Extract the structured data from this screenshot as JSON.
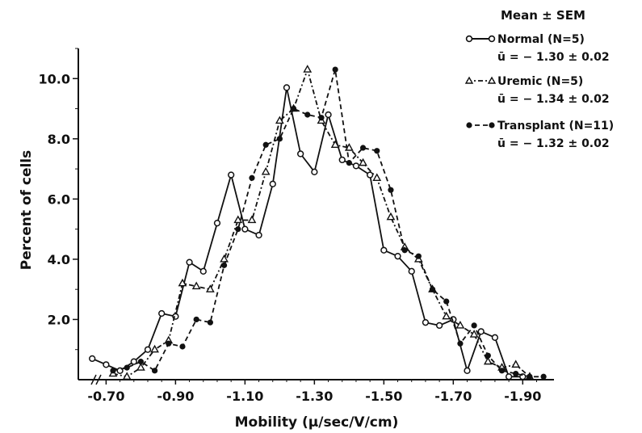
{
  "chart_data": {
    "type": "line",
    "title": "",
    "xlabel": "Mobility (μ/sec/V/cm)",
    "ylabel": "Percent of cells",
    "xlim": [
      -0.62,
      -1.99
    ],
    "ylim": [
      0,
      11
    ],
    "x_ticks": [
      -0.7,
      -0.9,
      -1.1,
      -1.3,
      -1.5,
      -1.7,
      -1.9
    ],
    "x_tick_labels": [
      "-0.70",
      "-0.90",
      "-1.10",
      "-1.30",
      "-1.50",
      "-1.70",
      "-1.90"
    ],
    "y_ticks": [
      2.0,
      4.0,
      6.0,
      8.0,
      10.0
    ],
    "y_tick_labels": [
      "2.0",
      "4.0",
      "6.0",
      "8.0",
      "10.0"
    ],
    "grid": false,
    "legend_title": "Mean ± SEM",
    "legend_position": "top-right",
    "series": [
      {
        "name": "Normal (N=5)",
        "stat": "ū = − 1.30 ± 0.02",
        "marker": "open-circle",
        "line_style": "solid",
        "x": [
          -0.66,
          -0.7,
          -0.74,
          -0.78,
          -0.82,
          -0.86,
          -0.9,
          -0.94,
          -0.98,
          -1.02,
          -1.06,
          -1.1,
          -1.14,
          -1.18,
          -1.22,
          -1.26,
          -1.3,
          -1.34,
          -1.38,
          -1.42,
          -1.46,
          -1.5,
          -1.54,
          -1.58,
          -1.62,
          -1.66,
          -1.7,
          -1.74,
          -1.78,
          -1.82,
          -1.86,
          -1.9
        ],
        "values": [
          0.7,
          0.5,
          0.3,
          0.6,
          1.0,
          2.2,
          2.1,
          3.9,
          3.6,
          5.2,
          6.8,
          5.0,
          4.8,
          6.5,
          9.7,
          7.5,
          6.9,
          8.8,
          7.3,
          7.1,
          6.8,
          4.3,
          4.1,
          3.6,
          1.9,
          1.8,
          2.0,
          0.3,
          1.6,
          1.4,
          0.1,
          0.1
        ]
      },
      {
        "name": "Uremic (N=5)",
        "stat": "ū = − 1.34 ± 0.02",
        "marker": "open-triangle",
        "line_style": "dash-dot",
        "x": [
          -0.72,
          -0.76,
          -0.8,
          -0.84,
          -0.88,
          -0.92,
          -0.96,
          -1.0,
          -1.04,
          -1.08,
          -1.12,
          -1.16,
          -1.2,
          -1.24,
          -1.28,
          -1.32,
          -1.36,
          -1.4,
          -1.44,
          -1.48,
          -1.52,
          -1.56,
          -1.6,
          -1.64,
          -1.68,
          -1.72,
          -1.76,
          -1.8,
          -1.84,
          -1.88,
          -1.92
        ],
        "values": [
          0.2,
          0.1,
          0.4,
          1.0,
          1.3,
          3.2,
          3.1,
          3.0,
          4.0,
          5.3,
          5.3,
          6.9,
          8.6,
          9.0,
          10.3,
          8.6,
          7.8,
          7.7,
          7.2,
          6.7,
          5.4,
          4.4,
          4.0,
          3.0,
          2.1,
          1.8,
          1.5,
          0.6,
          0.4,
          0.5,
          0.1
        ]
      },
      {
        "name": "Transplant (N=11)",
        "stat": "ū = − 1.32 ± 0.02",
        "marker": "filled-circle",
        "line_style": "dashed",
        "x": [
          -0.72,
          -0.76,
          -0.8,
          -0.84,
          -0.88,
          -0.92,
          -0.96,
          -1.0,
          -1.04,
          -1.08,
          -1.12,
          -1.16,
          -1.2,
          -1.24,
          -1.28,
          -1.32,
          -1.36,
          -1.4,
          -1.44,
          -1.48,
          -1.52,
          -1.56,
          -1.6,
          -1.64,
          -1.68,
          -1.72,
          -1.76,
          -1.8,
          -1.84,
          -1.88,
          -1.92,
          -1.96
        ],
        "values": [
          0.3,
          0.4,
          0.6,
          0.3,
          1.2,
          1.1,
          2.0,
          1.9,
          3.8,
          5.0,
          6.7,
          7.8,
          8.0,
          9.0,
          8.8,
          8.7,
          10.3,
          7.2,
          7.7,
          7.6,
          6.3,
          4.3,
          4.1,
          3.0,
          2.6,
          1.2,
          1.8,
          0.8,
          0.3,
          0.2,
          0.1,
          0.1
        ]
      }
    ]
  }
}
